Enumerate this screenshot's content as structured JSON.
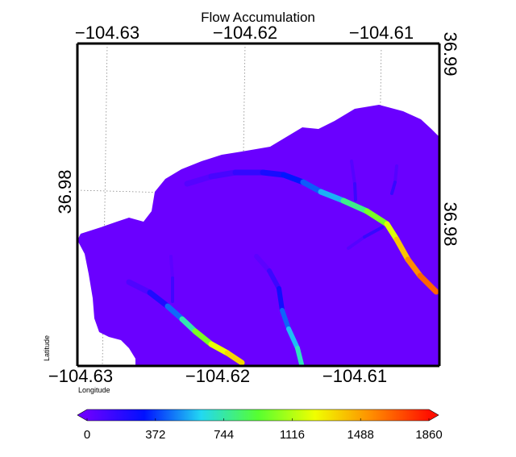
{
  "chart_data": {
    "type": "heatmap",
    "title": "Flow Accumulation",
    "xlabel": "Longitude",
    "ylabel": "Latitude",
    "top_lon_ticks": [
      "−104.63",
      "−104.62",
      "−104.61"
    ],
    "bottom_lon_ticks": [
      "−104.63",
      "−104.62",
      "−104.61"
    ],
    "left_lat_ticks": [
      "36.98"
    ],
    "right_lat_ticks": [
      "36.99",
      "36.98"
    ],
    "colorbar": {
      "min": 0,
      "max": 1860,
      "ticks": [
        "0",
        "372",
        "744",
        "1116",
        "1488",
        "1860"
      ],
      "colormap": "rainbow",
      "stops": [
        "#6a00ff",
        "#0010ff",
        "#22d8f2",
        "#56ff30",
        "#f0ff00",
        "#ff8c00",
        "#ff1000"
      ]
    },
    "background_value": 0,
    "background_color": "#6a00ff",
    "streams": [
      {
        "id": "main-channel",
        "values": [
          60,
          120,
          240,
          360,
          560,
          900,
          1200,
          1500,
          1650
        ]
      },
      {
        "id": "west-channel",
        "values": [
          80,
          250,
          550,
          900,
          1200,
          1350
        ]
      },
      {
        "id": "central-channel",
        "values": [
          40,
          200,
          500,
          700
        ]
      },
      {
        "id": "north-tributary-1",
        "values": [
          60,
          140
        ]
      },
      {
        "id": "north-tributary-2",
        "values": [
          60,
          150
        ]
      },
      {
        "id": "west-tributary",
        "values": [
          40,
          120
        ]
      },
      {
        "id": "side-tributary",
        "values": [
          60,
          150
        ]
      }
    ]
  }
}
